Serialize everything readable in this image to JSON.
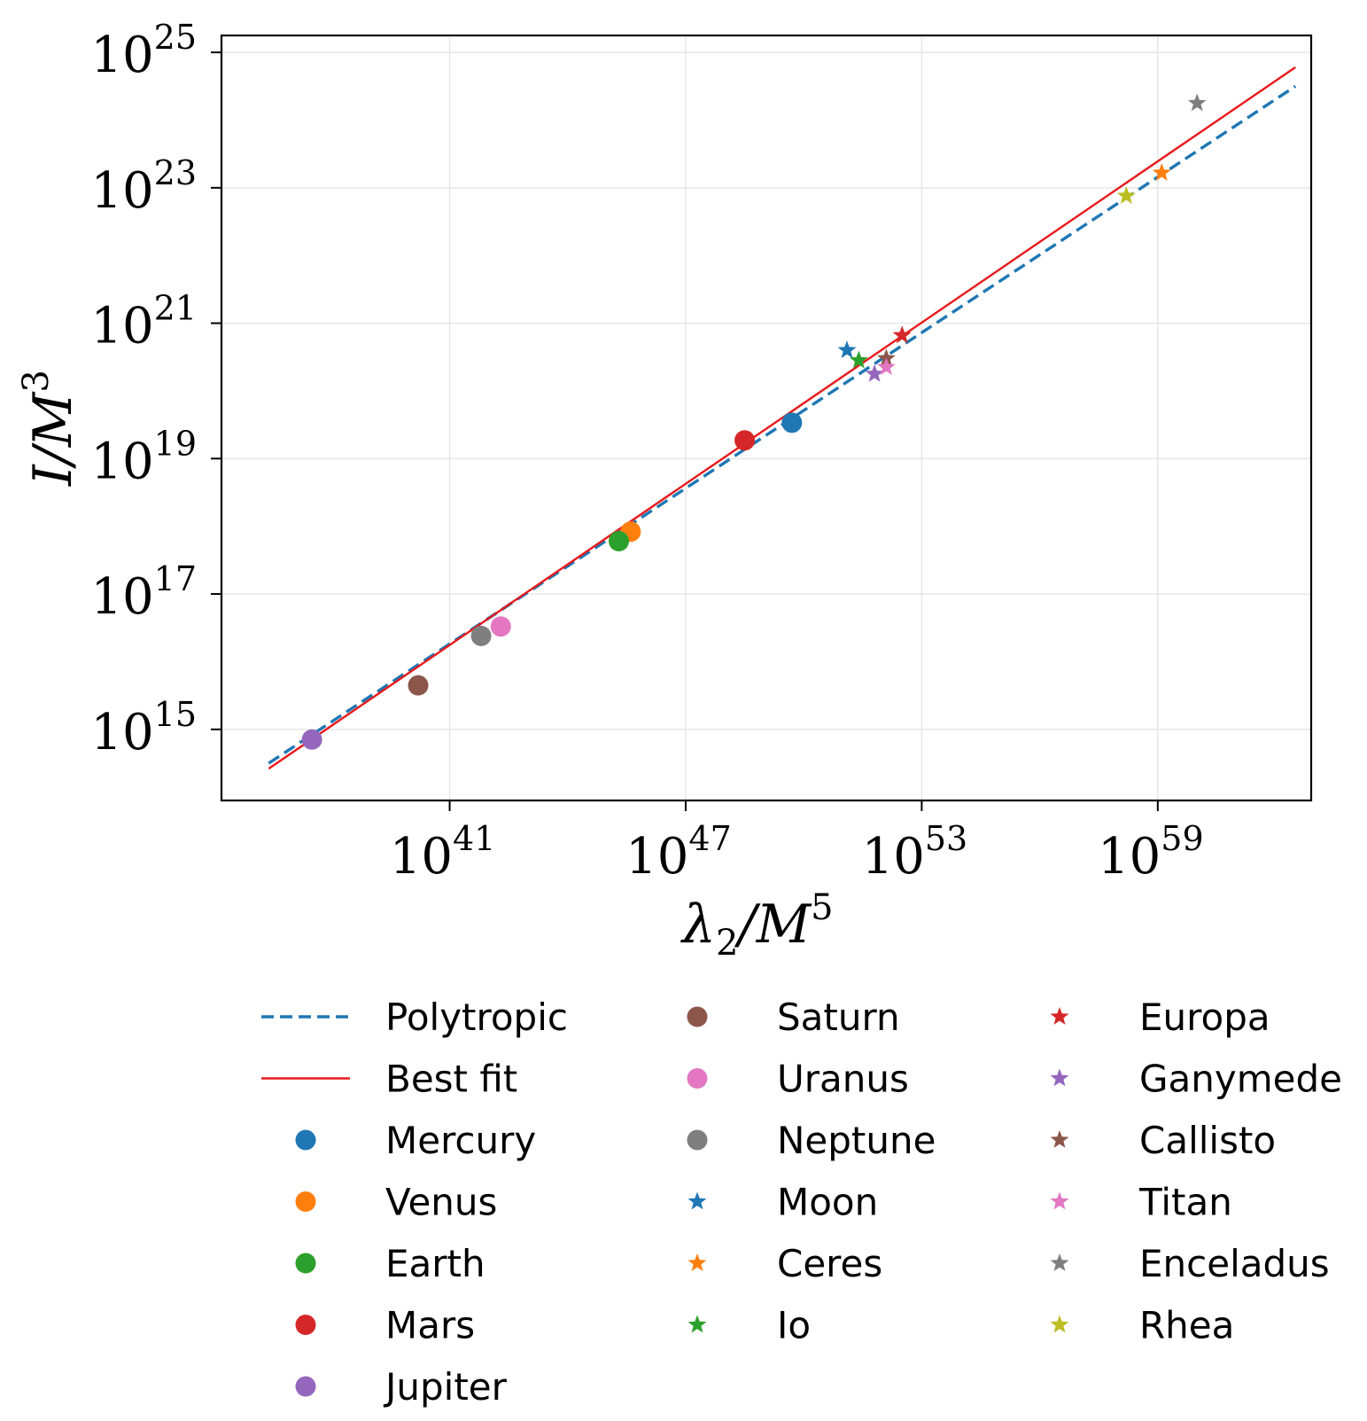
{
  "chart_data": {
    "type": "scatter",
    "xlabel": "λ2/M5",
    "xlabel_parts": {
      "main": "λ",
      "sub": "2",
      "rest": "/M",
      "sup": "5"
    },
    "ylabel": "I/M3",
    "ylabel_parts": {
      "main": "I/M",
      "sup": "3"
    },
    "x_scale": "log",
    "y_scale": "log",
    "xlim_log10": [
      35.2,
      62.9
    ],
    "ylim_log10": [
      13.95,
      25.25
    ],
    "grid": true,
    "x_ticks": [
      {
        "base": "10",
        "exp": "41",
        "log10": 41
      },
      {
        "base": "10",
        "exp": "47",
        "log10": 47
      },
      {
        "base": "10",
        "exp": "53",
        "log10": 53
      },
      {
        "base": "10",
        "exp": "59",
        "log10": 59
      }
    ],
    "y_ticks": [
      {
        "base": "10",
        "exp": "15",
        "log10": 15
      },
      {
        "base": "10",
        "exp": "17",
        "log10": 17
      },
      {
        "base": "10",
        "exp": "19",
        "log10": 19
      },
      {
        "base": "10",
        "exp": "21",
        "log10": 21
      },
      {
        "base": "10",
        "exp": "23",
        "log10": 23
      },
      {
        "base": "10",
        "exp": "25",
        "log10": 25
      }
    ],
    "lines": [
      {
        "name": "Polytropic",
        "color": "#1f77b4",
        "style": "dashed",
        "points_log10": [
          [
            36.4,
            14.5
          ],
          [
            62.5,
            24.5
          ]
        ]
      },
      {
        "name": "Best fit",
        "color": "#e8191c",
        "style": "solid",
        "points_log10": [
          [
            36.4,
            14.42
          ],
          [
            62.5,
            24.78
          ]
        ]
      }
    ],
    "series": [
      {
        "name": "Mercury",
        "marker": "circle",
        "color": "#1f77b4",
        "x_log10": 49.7,
        "y_log10": 19.53
      },
      {
        "name": "Venus",
        "marker": "circle",
        "color": "#ff7f0e",
        "x_log10": 45.6,
        "y_log10": 17.92
      },
      {
        "name": "Earth",
        "marker": "circle",
        "color": "#2ca02c",
        "x_log10": 45.3,
        "y_log10": 17.78
      },
      {
        "name": "Mars",
        "marker": "circle",
        "color": "#d62728",
        "x_log10": 48.5,
        "y_log10": 19.27
      },
      {
        "name": "Jupiter",
        "marker": "circle",
        "color": "#9467bd",
        "x_log10": 37.5,
        "y_log10": 14.85
      },
      {
        "name": "Saturn",
        "marker": "circle",
        "color": "#8c564b",
        "x_log10": 40.2,
        "y_log10": 15.65
      },
      {
        "name": "Uranus",
        "marker": "circle",
        "color": "#e377c2",
        "x_log10": 42.3,
        "y_log10": 16.52
      },
      {
        "name": "Neptune",
        "marker": "circle",
        "color": "#7f7f7f",
        "x_log10": 41.8,
        "y_log10": 16.38
      },
      {
        "name": "Moon",
        "marker": "star",
        "color": "#1f77b4",
        "x_log10": 51.1,
        "y_log10": 20.6
      },
      {
        "name": "Ceres",
        "marker": "star",
        "color": "#ff7f0e",
        "x_log10": 59.1,
        "y_log10": 23.22
      },
      {
        "name": "Io",
        "marker": "star",
        "color": "#2ca02c",
        "x_log10": 51.4,
        "y_log10": 20.45
      },
      {
        "name": "Europa",
        "marker": "star",
        "color": "#d62728",
        "x_log10": 52.5,
        "y_log10": 20.82
      },
      {
        "name": "Ganymede",
        "marker": "star",
        "color": "#9467bd",
        "x_log10": 51.8,
        "y_log10": 20.25
      },
      {
        "name": "Callisto",
        "marker": "star",
        "color": "#8c564b",
        "x_log10": 52.1,
        "y_log10": 20.48
      },
      {
        "name": "Titan",
        "marker": "star",
        "color": "#e377c2",
        "x_log10": 52.1,
        "y_log10": 20.35
      },
      {
        "name": "Enceladus",
        "marker": "star",
        "color": "#7f7f7f",
        "x_log10": 60.0,
        "y_log10": 24.25
      },
      {
        "name": "Rhea",
        "marker": "star",
        "color": "#bcbd22",
        "x_log10": 58.2,
        "y_log10": 22.88
      }
    ],
    "legend": {
      "placement": "below",
      "columns": [
        [
          "Polytropic",
          "Best fit",
          "Mercury",
          "Venus",
          "Earth",
          "Mars",
          "Jupiter"
        ],
        [
          "Saturn",
          "Uranus",
          "Neptune",
          "Moon",
          "Ceres",
          "Io"
        ],
        [
          "Europa",
          "Ganymede",
          "Callisto",
          "Titan",
          "Enceladus",
          "Rhea"
        ]
      ]
    }
  }
}
